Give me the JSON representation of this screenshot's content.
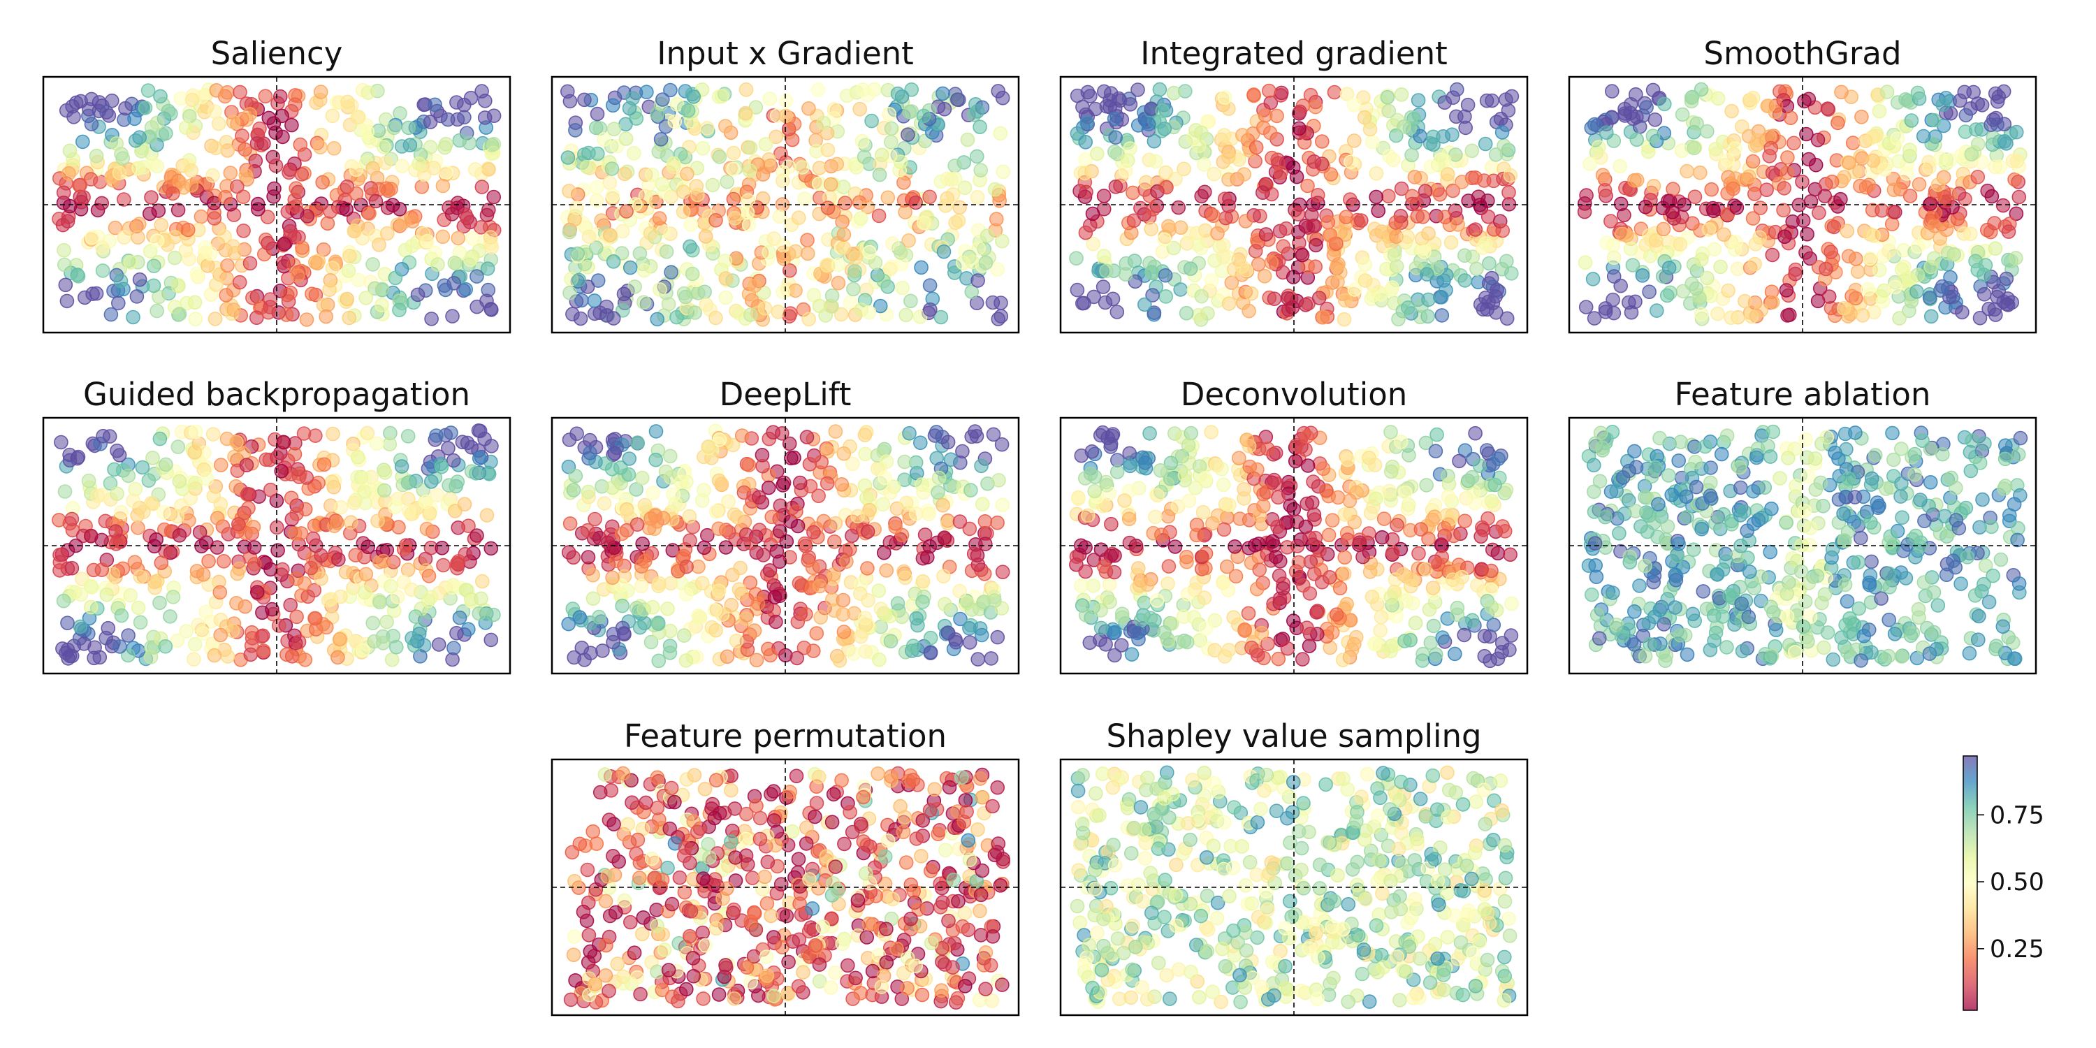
{
  "chart_data": {
    "type": "scatter",
    "figure_description": "Grid of attribution-method scatter maps; each point colored by normalized attribution value on a Spectral colormap.",
    "value_range": [
      0,
      1
    ],
    "colorbar": {
      "ticks": [
        0.25,
        0.5,
        0.75
      ],
      "tick_labels": [
        "0.25",
        "0.50",
        "0.75"
      ],
      "range": [
        0.02,
        0.97
      ],
      "colormap": "Spectral"
    },
    "reference_lines": {
      "x": 0,
      "y": 0,
      "style": "dashed"
    },
    "x_range": [
      -1,
      1
    ],
    "y_range": [
      -1,
      1
    ],
    "panels": [
      {
        "title": "Saliency",
        "pattern": "axis_cross_high",
        "scale": 1.4
      },
      {
        "title": "Input x Gradient",
        "pattern": "axis_cross_low",
        "scale": 1.0
      },
      {
        "title": "Integrated gradient",
        "pattern": "axis_cross_high",
        "scale": 1.4
      },
      {
        "title": "SmoothGrad",
        "pattern": "axis_cross_high",
        "scale": 1.4
      },
      {
        "title": "Guided backpropagation",
        "pattern": "axis_cross_high",
        "scale": 1.3
      },
      {
        "title": "DeepLift",
        "pattern": "axis_cross_high",
        "scale": 1.3
      },
      {
        "title": "Deconvolution",
        "pattern": "axis_cross_high",
        "scale": 1.3
      },
      {
        "title": "Feature ablation",
        "pattern": "mostly_high",
        "scale": 1.0
      },
      {
        "title": "Feature permutation",
        "pattern": "mostly_low",
        "scale": 1.0
      },
      {
        "title": "Shapley value sampling",
        "pattern": "mostly_mid",
        "scale": 1.0
      }
    ],
    "points_per_panel": 620
  },
  "colors": {
    "frame": "#000000",
    "reference_line": "#000000",
    "spectral_stops": [
      "#9e0142",
      "#d53e4f",
      "#f46d43",
      "#fdae61",
      "#fee08b",
      "#ffffbf",
      "#e6f598",
      "#abdda4",
      "#66c2a5",
      "#3288bd",
      "#5e4fa2"
    ]
  }
}
